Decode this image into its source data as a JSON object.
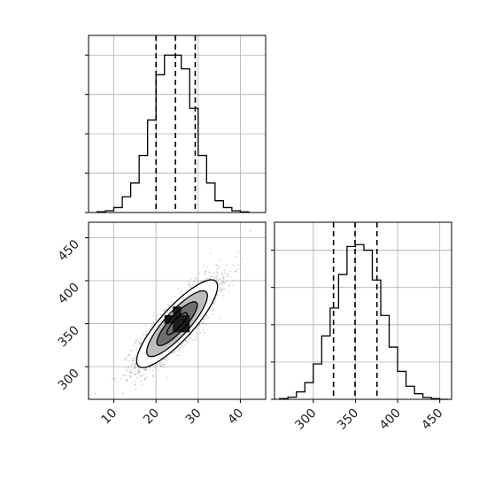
{
  "chart_data": [
    {
      "type": "histogram",
      "panel": "marginal-param-1",
      "bin_edges": [
        6,
        8,
        10,
        12,
        14,
        16,
        18,
        20,
        22,
        24,
        26,
        28,
        30,
        32,
        34,
        36,
        38,
        40,
        42
      ],
      "counts": [
        0.4,
        0.9,
        2.5,
        8,
        15,
        29,
        47,
        70,
        80,
        80,
        73,
        53,
        29,
        15,
        6,
        2.5,
        0.9,
        0.3
      ],
      "quantile_lines": [
        20,
        24.6,
        29.3
      ],
      "xlim": [
        4,
        46
      ],
      "ylim": [
        0,
        90
      ],
      "xgrid": [
        10,
        20,
        30,
        40
      ],
      "ygrid": [
        20,
        40,
        60,
        80
      ],
      "yticks": [
        0,
        20,
        40,
        60,
        80
      ],
      "grid": true
    },
    {
      "type": "histogram",
      "panel": "marginal-param-2",
      "bin_edges": [
        260,
        270,
        280,
        290,
        300,
        310,
        320,
        330,
        340,
        350,
        360,
        370,
        380,
        390,
        400,
        410,
        420,
        430,
        440,
        450,
        460
      ],
      "counts": [
        0.4,
        1.2,
        4,
        9,
        19,
        34,
        49,
        67,
        82,
        83,
        80,
        64,
        45,
        28,
        15,
        7,
        3,
        1,
        0.4,
        0
      ],
      "quantile_lines": [
        324,
        349.5,
        375.5
      ],
      "xlim": [
        254,
        464
      ],
      "ylim": [
        0,
        95
      ],
      "xgrid": [
        300,
        350,
        400,
        450
      ],
      "ygrid": [
        20,
        40,
        60,
        80
      ],
      "yticks": [
        0,
        20,
        40,
        60,
        80
      ],
      "grid": true
    },
    {
      "type": "scatter",
      "panel": "joint-density",
      "x_center": 25,
      "y_center": 350,
      "x_sd": 4.8,
      "y_sd": 25.5,
      "correlation": 0.85,
      "n_points": 2600,
      "contour_levels_sigma": [
        0.5,
        1.0,
        1.5,
        2.0
      ],
      "xlim": [
        4,
        46
      ],
      "ylim": [
        262,
        468
      ],
      "xticks": [
        10,
        20,
        30,
        40
      ],
      "yticks": [
        300,
        350,
        400,
        450
      ],
      "xtick_labels": [
        "10",
        "20",
        "30",
        "40"
      ],
      "ytick_labels": [
        "300",
        "350",
        "400",
        "450"
      ],
      "grid": true
    }
  ],
  "bottom_axis": {
    "tick_labels": [
      "300",
      "350",
      "400",
      "450"
    ]
  },
  "colors": {
    "line": "#000000",
    "grid": "#b0b0b0",
    "points": "#888888",
    "fill_dark": "#1a1a1a",
    "fill_mid": "#6e6e6e",
    "fill_light": "#bdbdbd",
    "background": "#ffffff"
  }
}
